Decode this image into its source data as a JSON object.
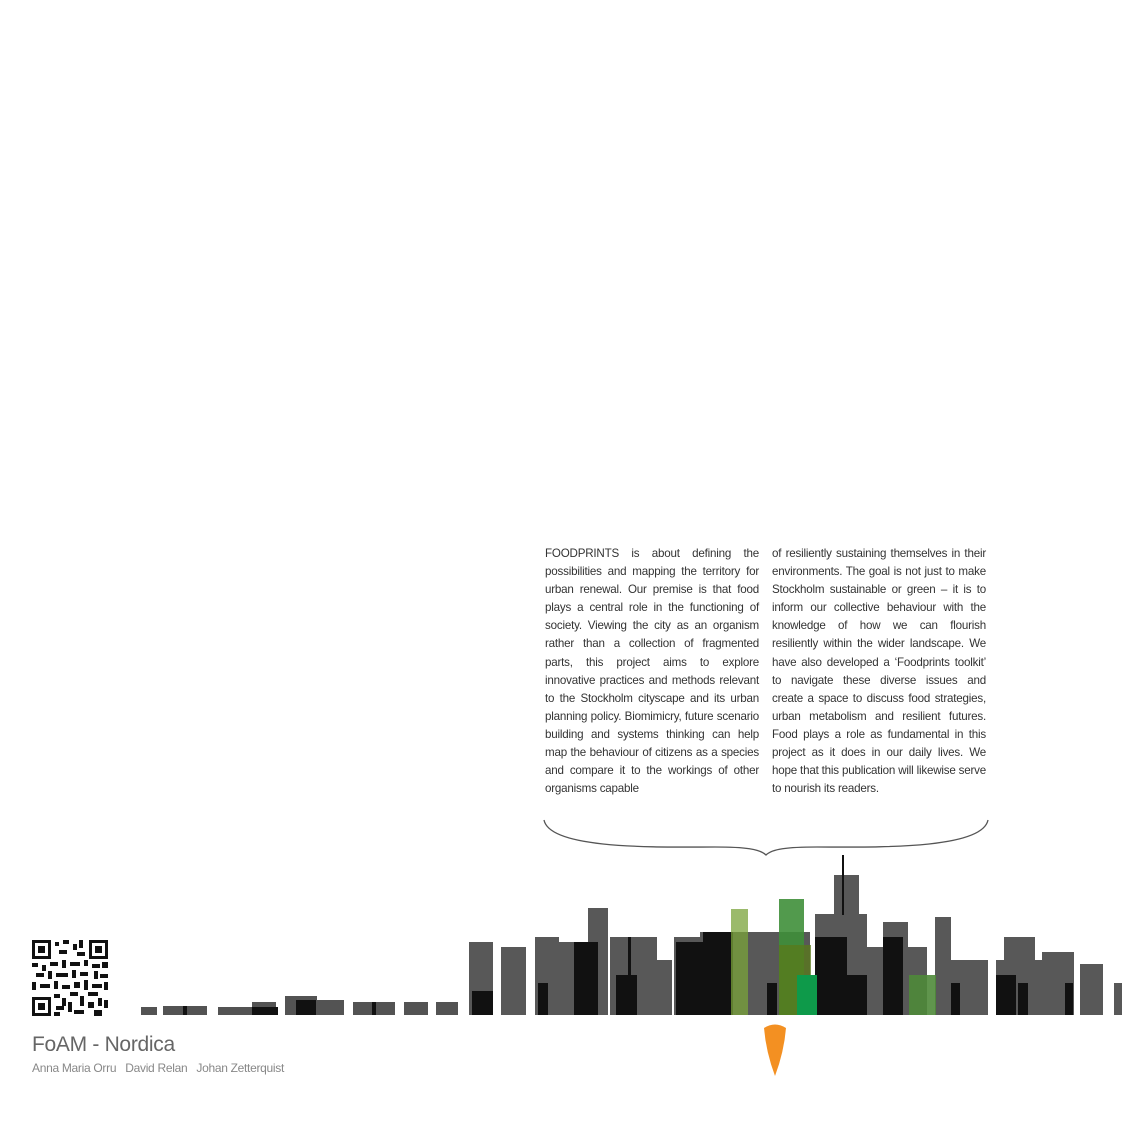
{
  "intro": {
    "left_column": "FOODPRINTS is about defining the possibilities and mapping the territory for urban renewal. Our premise is that food plays a central role in the functioning of society. Viewing the city as an organism rather than a collection of fragmented parts, this project aims to explore innovative practices and methods relevant to the Stockholm cityscape and its urban planning policy. Biomimicry, future scenario building and systems thinking can help map the behaviour of citizens as a species and compare it to the workings of other organisms capable",
    "right_column": "of resiliently sustaining themselves in their environments. The goal is not just to make Stockholm sustainable or green – it is to inform our collective behaviour with the knowledge of how we can flourish resiliently within the wider landscape. We have also developed a ‘Foodprints toolkit’ to navigate these diverse issues and create a space to discuss food strategies, urban metabolism and resilient futures. Food plays a role as fundamental in this project as it does in our daily lives. We hope that this publication will likewise serve to nourish its readers."
  },
  "footer": {
    "organization": "FoAM - Nordica",
    "authors": [
      "Anna Maria Orru",
      "David Relan",
      "Johan Zetterquist"
    ]
  },
  "graphics": {
    "qr_icon": "qr-code-icon",
    "carrot_icon": "carrot-icon",
    "skyline": "skyline-illustration",
    "colors": {
      "grey": "#4a4a4a",
      "black": "#111111",
      "green": "#3f8f3a",
      "lime": "#7aa33a",
      "carrot": "#f39022"
    }
  }
}
